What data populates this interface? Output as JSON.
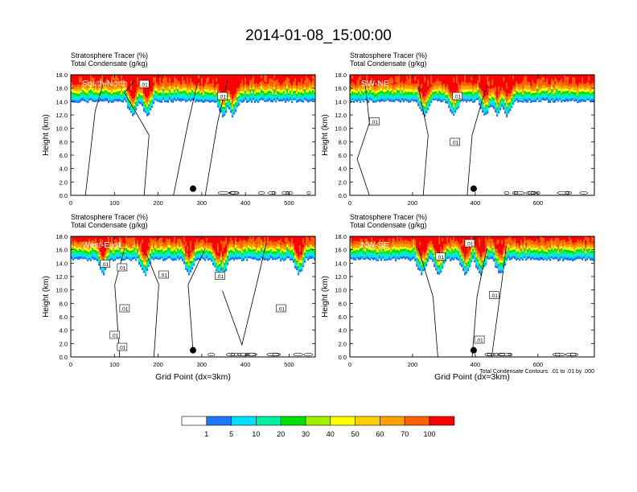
{
  "title": "2014-01-08_15:00:00",
  "chart_data": [
    {
      "type": "heatmap",
      "subtitle_1": "Stratosphere Tracer   (%)",
      "subtitle_2": "Total Condensate   (g/kg)",
      "panel_label": "South-North",
      "ylabel": "Height (km)",
      "xlabel": "",
      "xlim": [
        0,
        560
      ],
      "ylim": [
        0,
        18
      ],
      "xticks": [
        "0",
        "100",
        "200",
        "300",
        "400",
        "500"
      ],
      "yticks": [
        "0.0",
        "2.0",
        "4.0",
        "6.0",
        "8.0",
        "10.0",
        "12.0",
        "14.0",
        "16.0",
        "18.0"
      ],
      "tracer_band_km": [
        14.0,
        18.0
      ],
      "contour_labels": [
        ".01",
        ".01"
      ],
      "marker": {
        "x": 280,
        "y_km": 1.0
      }
    },
    {
      "type": "heatmap",
      "subtitle_1": "Stratosphere Tracer   (%)",
      "subtitle_2": "Total Condensate   (g/kg)",
      "panel_label": "SW-NE",
      "ylabel": "Height (km)",
      "xlabel": "",
      "xlim": [
        0,
        780
      ],
      "ylim": [
        0,
        18
      ],
      "xticks": [
        "0",
        "200",
        "400",
        "600"
      ],
      "yticks": [
        "0.0",
        "2.0",
        "4.0",
        "6.0",
        "8.0",
        "10.0",
        "12.0",
        "14.0",
        "16.0",
        "18.0"
      ],
      "tracer_band_km": [
        14.0,
        18.0
      ],
      "contour_labels": [
        ".01",
        ".01",
        ".01"
      ],
      "marker": {
        "x": 395,
        "y_km": 1.0
      }
    },
    {
      "type": "heatmap",
      "subtitle_1": "Stratosphere Tracer   (%)",
      "subtitle_2": "Total Condensate   (g/kg)",
      "panel_label": "West-East",
      "ylabel": "Height (km)",
      "xlabel": "Grid Point (dx=3km)",
      "xlim": [
        0,
        560
      ],
      "ylim": [
        0,
        18
      ],
      "xticks": [
        "0",
        "100",
        "200",
        "300",
        "400",
        "500"
      ],
      "yticks": [
        "0.0",
        "2.0",
        "4.0",
        "6.0",
        "8.0",
        "10.0",
        "12.0",
        "14.0",
        "16.0",
        "18.0"
      ],
      "tracer_band_km": [
        14.5,
        18.0
      ],
      "contour_labels": [
        ".01",
        ".01",
        ".01",
        ".01",
        ".01",
        ".01",
        ".01",
        ".01"
      ],
      "marker": {
        "x": 280,
        "y_km": 1.0
      }
    },
    {
      "type": "heatmap",
      "subtitle_1": "Stratosphere Tracer   (%)",
      "subtitle_2": "Total Condensate   (g/kg)",
      "panel_label": "NW-SE",
      "ylabel": "Height (km)",
      "xlabel": "Grid Point (dx=3km)",
      "xlim": [
        0,
        780
      ],
      "ylim": [
        0,
        18
      ],
      "xticks": [
        "0",
        "200",
        "400",
        "600"
      ],
      "yticks": [
        "0.0",
        "2.0",
        "4.0",
        "6.0",
        "8.0",
        "10.0",
        "12.0",
        "14.0",
        "16.0",
        "18.0"
      ],
      "tracer_band_km": [
        14.5,
        18.0
      ],
      "contour_labels": [
        ".01",
        ".01",
        ".01",
        ".01"
      ],
      "marker": {
        "x": 395,
        "y_km": 1.0
      },
      "footnote": "Total Condensate Contours: .01 to .01 by .000"
    }
  ],
  "colorbar": {
    "levels": [
      "1",
      "5",
      "10",
      "20",
      "30",
      "40",
      "50",
      "60",
      "70",
      "100"
    ],
    "colors": [
      "#ffffff",
      "#1e78ff",
      "#00e0ff",
      "#00f0a0",
      "#00e000",
      "#a0f000",
      "#ffff00",
      "#ffd000",
      "#ffa000",
      "#ff6000",
      "#ff0000"
    ]
  }
}
